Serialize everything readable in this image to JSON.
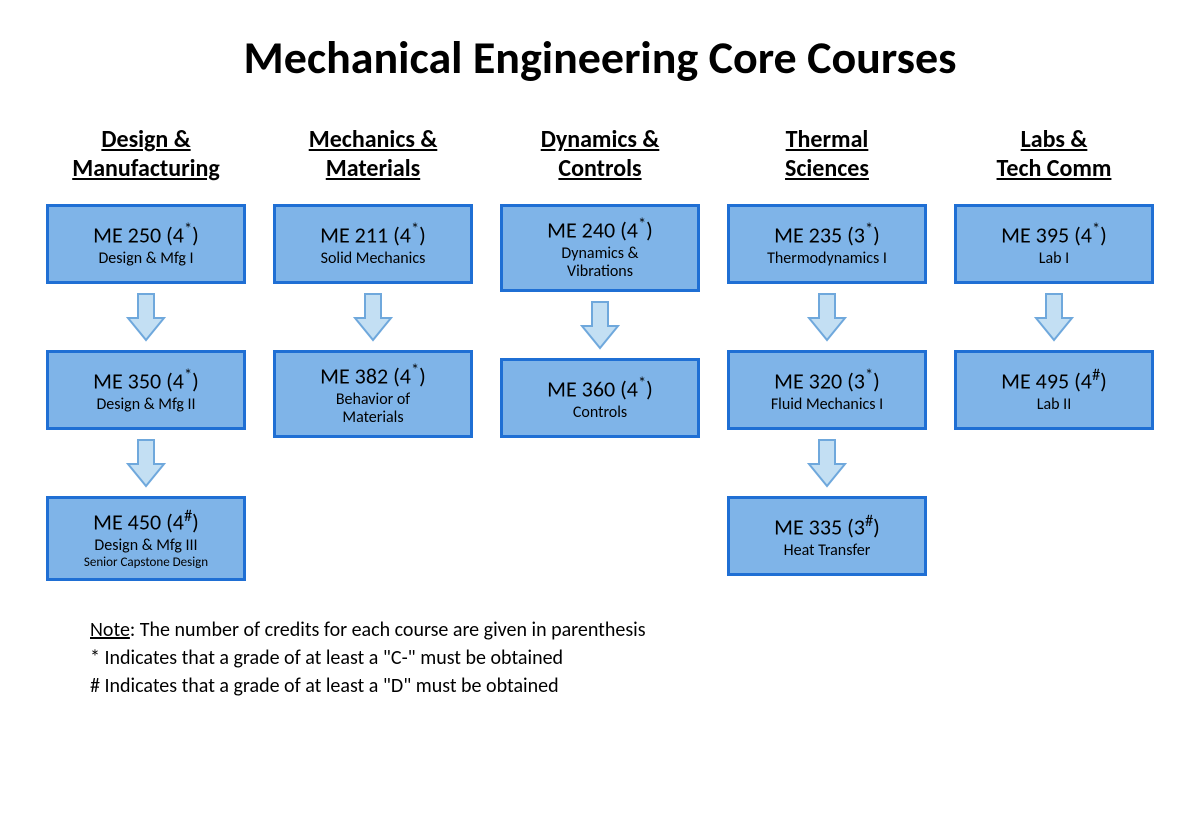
{
  "title": "Mechanical Engineering Core Courses",
  "colors": {
    "box_fill": "#7fb4e8",
    "box_border": "#1f6fd4",
    "arrow_fill": "#c3dff3",
    "arrow_border": "#6fa8dc",
    "text": "#000000",
    "background": "#ffffff"
  },
  "columns": [
    {
      "header": "Design & Manufacturing",
      "courses": [
        {
          "code": "ME 250 (4*)",
          "desc": "Design & Mfg I"
        },
        {
          "code": "ME 350 (4*)",
          "desc": "Design & Mfg II"
        },
        {
          "code": "ME 450 (4#)",
          "desc": "Design & Mfg III",
          "desc2": "Senior Capstone Design"
        }
      ]
    },
    {
      "header": "Mechanics & Materials",
      "courses": [
        {
          "code": "ME 211 (4*)",
          "desc": "Solid Mechanics"
        },
        {
          "code": "ME 382 (4*)",
          "desc": "Behavior of Materials"
        }
      ]
    },
    {
      "header": "Dynamics & Controls",
      "courses": [
        {
          "code": "ME 240 (4*)",
          "desc": "Dynamics & Vibrations"
        },
        {
          "code": "ME 360 (4*)",
          "desc": "Controls"
        }
      ]
    },
    {
      "header": "Thermal Sciences",
      "courses": [
        {
          "code": "ME 235 (3*)",
          "desc": "Thermodynamics I"
        },
        {
          "code": "ME 320 (3*)",
          "desc": "Fluid Mechanics I"
        },
        {
          "code": "ME 335 (3#)",
          "desc": "Heat Transfer"
        }
      ]
    },
    {
      "header": "Labs & Tech Comm",
      "courses": [
        {
          "code": "ME 395 (4*)",
          "desc": "Lab I"
        },
        {
          "code": "ME 495 (4#)",
          "desc": "Lab II"
        }
      ]
    }
  ],
  "notes": {
    "label": "Note",
    "line1": ": The number of credits for each course are given in parenthesis",
    "line2": "* Indicates that a grade of at least a \"C-\" must be obtained",
    "line3": "# Indicates that a grade of at least a \"D\" must be obtained"
  }
}
